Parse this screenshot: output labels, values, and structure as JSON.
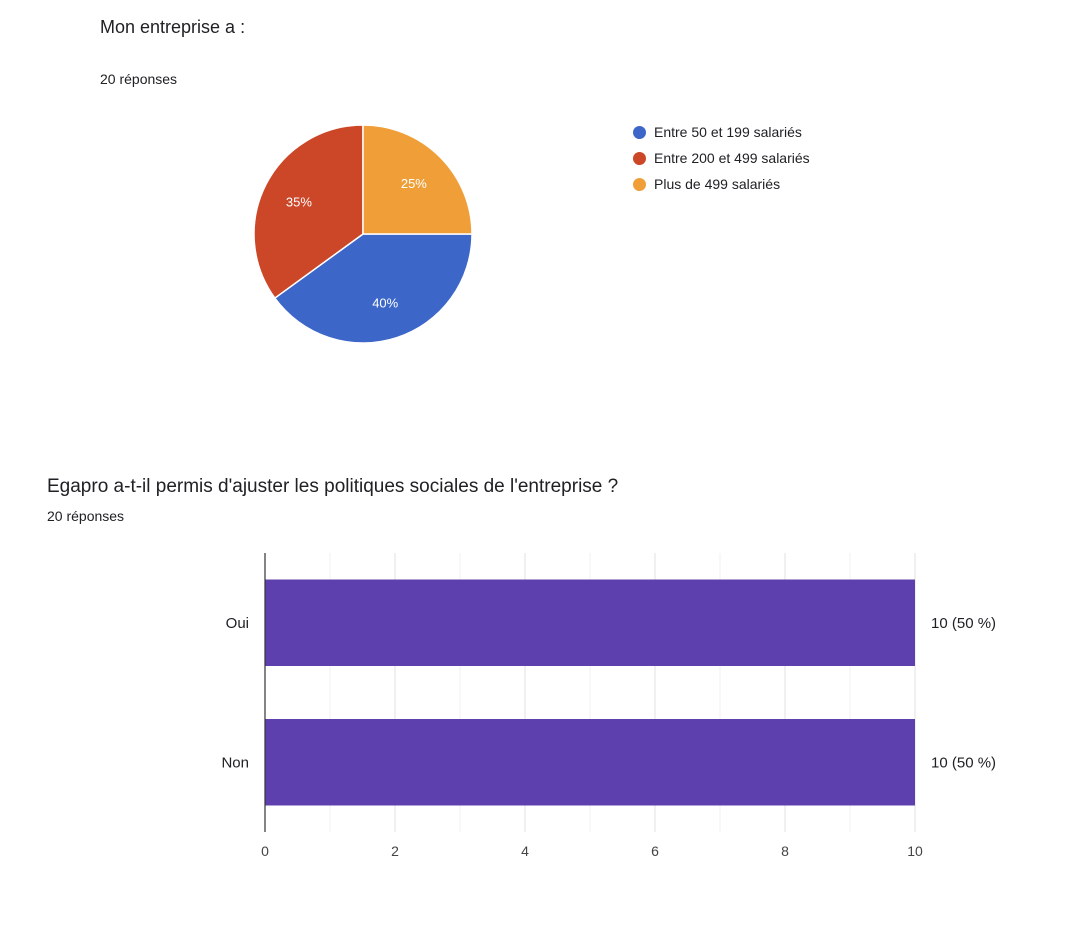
{
  "chart_data": [
    {
      "type": "pie",
      "title": "Mon entreprise a :",
      "subtitle": "20 réponses",
      "legend_position": "right",
      "slices": [
        {
          "label": "Entre 50 et 199 salariés",
          "value": 40,
          "display": "40%",
          "color": "#3c67c9"
        },
        {
          "label": "Entre 200 et 499 salariés",
          "value": 35,
          "display": "35%",
          "color": "#cc4628"
        },
        {
          "label": "Plus de 499 salariés",
          "value": 25,
          "display": "25%",
          "color": "#f09f38"
        }
      ]
    },
    {
      "type": "bar",
      "orientation": "horizontal",
      "title": "Egapro a-t-il permis d'ajuster les politiques sociales de l'entreprise ?",
      "subtitle": "20 réponses",
      "categories": [
        "Oui",
        "Non"
      ],
      "values": [
        10,
        10
      ],
      "value_labels": [
        "10 (50 %)",
        "10 (50 %)"
      ],
      "color": "#5e3fae",
      "xlim": [
        0,
        10
      ],
      "xticks": [
        0,
        2,
        4,
        6,
        8,
        10
      ],
      "grid": true
    }
  ]
}
